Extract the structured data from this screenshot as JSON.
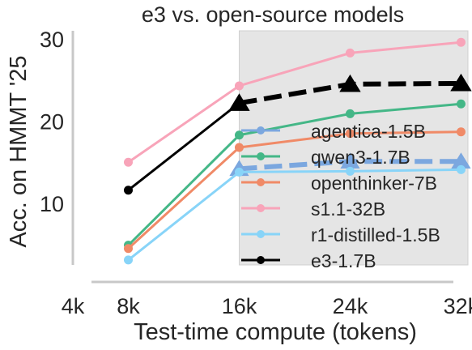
{
  "chart_data": {
    "type": "line",
    "title": "e3 vs. open-source models",
    "xlabel": "Test-time compute (tokens)",
    "ylabel": "Acc. on HMMT '25",
    "x_ticks": [
      {
        "value": 4,
        "label": "4k"
      },
      {
        "value": 8,
        "label": "8k"
      },
      {
        "value": 16,
        "label": "16k"
      },
      {
        "value": 24,
        "label": "24k"
      },
      {
        "value": 32,
        "label": "32k"
      }
    ],
    "y_ticks": [
      10,
      20,
      30
    ],
    "xlim": [
      4,
      32.5
    ],
    "ylim": [
      2.5,
      31
    ],
    "shaded_region": {
      "x_from": 16,
      "x_to": 32.5,
      "color": "#e5e5e5"
    },
    "legend_placement": "lower-right",
    "series": [
      {
        "name": "agentica-1.5B",
        "color": "#7ba7df",
        "x": [
          16,
          24,
          32
        ],
        "y": [
          14.2,
          15.1,
          15.1
        ],
        "style": "dashed",
        "marker": "triangle"
      },
      {
        "name": "qwen3-1.7B",
        "color": "#44b787",
        "x": [
          8,
          16,
          24,
          32
        ],
        "y": [
          4.9,
          18.3,
          20.9,
          22.1
        ],
        "style": "solid",
        "marker": "circle"
      },
      {
        "name": "openthinker-7B",
        "color": "#f08a67",
        "x": [
          8,
          16,
          24,
          32
        ],
        "y": [
          4.5,
          16.8,
          18.5,
          18.7
        ],
        "style": "solid",
        "marker": "circle"
      },
      {
        "name": "s1.1-32B",
        "color": "#f8a4b9",
        "x": [
          8,
          16,
          24,
          32
        ],
        "y": [
          15.0,
          24.3,
          28.3,
          29.6
        ],
        "style": "solid",
        "marker": "circle"
      },
      {
        "name": "r1-distilled-1.5B",
        "color": "#88d4f8",
        "x": [
          8,
          16,
          24,
          32
        ],
        "y": [
          3.1,
          13.8,
          13.9,
          14.1
        ],
        "style": "solid",
        "marker": "circle"
      },
      {
        "name": "e3-1.7B",
        "color": "#000000",
        "x": [
          8,
          16,
          24,
          32
        ],
        "y": [
          11.6,
          22.2,
          24.5,
          24.6
        ],
        "style": "solid-then-dashed",
        "marker": "circle-then-triangle",
        "dashed_from": 16
      }
    ]
  }
}
